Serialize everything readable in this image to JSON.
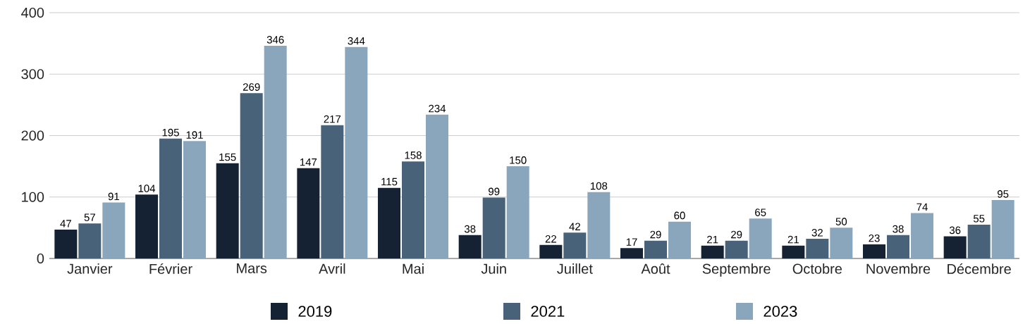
{
  "chart_data": {
    "type": "bar",
    "categories": [
      "Janvier",
      "Février",
      "Mars",
      "Avril",
      "Mai",
      "Juin",
      "Juillet",
      "Août",
      "Septembre",
      "Octobre",
      "Novembre",
      "Décembre"
    ],
    "series": [
      {
        "name": "2019",
        "color": "#142233",
        "values": [
          47,
          104,
          155,
          147,
          115,
          38,
          22,
          17,
          21,
          21,
          23,
          36
        ]
      },
      {
        "name": "2021",
        "color": "#48627a",
        "values": [
          57,
          195,
          269,
          217,
          158,
          99,
          42,
          29,
          29,
          32,
          38,
          55
        ]
      },
      {
        "name": "2023",
        "color": "#8aa6bc",
        "values": [
          91,
          191,
          346,
          344,
          234,
          150,
          108,
          60,
          65,
          50,
          74,
          95
        ]
      }
    ],
    "ylim": [
      0,
      400
    ],
    "yticks": [
      0,
      100,
      200,
      300,
      400
    ],
    "grid": "y",
    "legend": "bottom",
    "data_labels": true
  }
}
